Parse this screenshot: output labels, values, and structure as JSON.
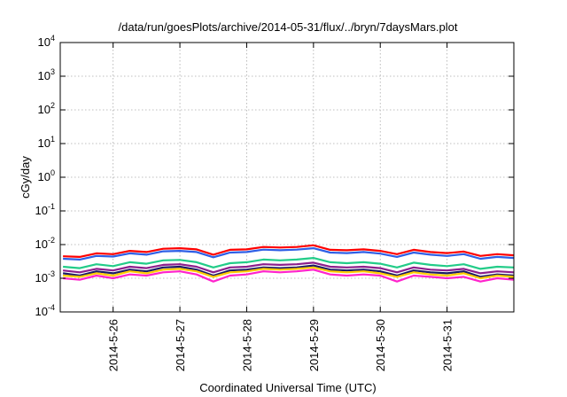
{
  "chart_data": {
    "type": "line",
    "title": "/data/run/goesPlots/archive/2014-05-31/flux/../bryn/7daysMars.plot",
    "xlabel": "Coordinated Universal Time (UTC)",
    "ylabel": "cGy/day",
    "y_scale": "log",
    "ylim": [
      0.0001,
      10000
    ],
    "y_ticks": [
      {
        "base": "10",
        "exp": "-4"
      },
      {
        "base": "10",
        "exp": "-3"
      },
      {
        "base": "10",
        "exp": "-2"
      },
      {
        "base": "10",
        "exp": "-1"
      },
      {
        "base": "10",
        "exp": "0"
      },
      {
        "base": "10",
        "exp": "1"
      },
      {
        "base": "10",
        "exp": "2"
      },
      {
        "base": "10",
        "exp": "3"
      },
      {
        "base": "10",
        "exp": "4"
      }
    ],
    "xlim": [
      "2014-05-25 05:00",
      "2014-06-01 00:00"
    ],
    "x_ticks": [
      "2014-5-26",
      "2014-5-27",
      "2014-5-28",
      "2014-5-29",
      "2014-5-30",
      "2014-5-31"
    ],
    "grid": true,
    "x": [
      "2014-05-25 06:00",
      "2014-05-25 12:00",
      "2014-05-25 18:00",
      "2014-05-26 00:00",
      "2014-05-26 06:00",
      "2014-05-26 12:00",
      "2014-05-26 18:00",
      "2014-05-27 00:00",
      "2014-05-27 06:00",
      "2014-05-27 12:00",
      "2014-05-27 18:00",
      "2014-05-28 00:00",
      "2014-05-28 06:00",
      "2014-05-28 12:00",
      "2014-05-28 18:00",
      "2014-05-29 00:00",
      "2014-05-29 06:00",
      "2014-05-29 12:00",
      "2014-05-29 18:00",
      "2014-05-30 00:00",
      "2014-05-30 06:00",
      "2014-05-30 12:00",
      "2014-05-30 18:00",
      "2014-05-31 00:00",
      "2014-05-31 06:00",
      "2014-05-31 12:00",
      "2014-05-31 18:00",
      "2014-06-01 00:00"
    ],
    "series": [
      {
        "color": "#ff0000",
        "values": [
          0.0045,
          0.0043,
          0.0055,
          0.0052,
          0.0065,
          0.006,
          0.0075,
          0.0078,
          0.0072,
          0.005,
          0.007,
          0.0072,
          0.0085,
          0.0082,
          0.0085,
          0.0095,
          0.007,
          0.0068,
          0.0072,
          0.0065,
          0.0052,
          0.007,
          0.006,
          0.0056,
          0.0062,
          0.0046,
          0.0052,
          0.0048
        ]
      },
      {
        "color": "#2e5fe6",
        "values": [
          0.0038,
          0.0036,
          0.0046,
          0.0044,
          0.0055,
          0.005,
          0.0063,
          0.0065,
          0.006,
          0.0042,
          0.0058,
          0.006,
          0.0071,
          0.0068,
          0.0071,
          0.0078,
          0.0058,
          0.0056,
          0.006,
          0.0054,
          0.0043,
          0.0058,
          0.005,
          0.0046,
          0.0052,
          0.0038,
          0.0043,
          0.004
        ]
      },
      {
        "color": "#22cc88",
        "values": [
          0.0022,
          0.002,
          0.0026,
          0.0023,
          0.003,
          0.0027,
          0.0034,
          0.0035,
          0.003,
          0.0021,
          0.0028,
          0.003,
          0.0036,
          0.0034,
          0.0036,
          0.004,
          0.003,
          0.0028,
          0.003,
          0.0027,
          0.0021,
          0.0029,
          0.0025,
          0.0023,
          0.0026,
          0.0019,
          0.0022,
          0.0021
        ]
      },
      {
        "color": "#8c1f8c",
        "values": [
          0.0017,
          0.0015,
          0.0019,
          0.0017,
          0.0022,
          0.002,
          0.0025,
          0.0026,
          0.0022,
          0.0015,
          0.0021,
          0.0022,
          0.0026,
          0.0025,
          0.0026,
          0.0029,
          0.0022,
          0.0021,
          0.0022,
          0.002,
          0.0015,
          0.0021,
          0.0018,
          0.0017,
          0.0019,
          0.0014,
          0.0016,
          0.0015
        ]
      },
      {
        "color": "#1a1a66",
        "values": [
          0.0014,
          0.0012,
          0.0016,
          0.0014,
          0.0018,
          0.0016,
          0.0021,
          0.0022,
          0.0018,
          0.0012,
          0.0017,
          0.0018,
          0.0021,
          0.002,
          0.0021,
          0.0024,
          0.0018,
          0.0017,
          0.0018,
          0.0016,
          0.0012,
          0.0017,
          0.0015,
          0.0014,
          0.0016,
          0.0011,
          0.0013,
          0.0012
        ]
      },
      {
        "color": "#ffcc00",
        "values": [
          0.0012,
          0.0011,
          0.0014,
          0.0012,
          0.0016,
          0.0014,
          0.0018,
          0.0019,
          0.0016,
          0.0011,
          0.0015,
          0.0016,
          0.0019,
          0.0018,
          0.0019,
          0.0021,
          0.0016,
          0.0015,
          0.0016,
          0.0014,
          0.0011,
          0.0015,
          0.0013,
          0.0012,
          0.0014,
          0.001,
          0.0012,
          0.0011
        ]
      },
      {
        "color": "#ff22cc",
        "values": [
          0.001,
          0.0009,
          0.0012,
          0.001,
          0.0013,
          0.0012,
          0.0015,
          0.0016,
          0.0013,
          0.0008,
          0.0012,
          0.0013,
          0.0016,
          0.0015,
          0.0016,
          0.0018,
          0.0013,
          0.0012,
          0.0013,
          0.0012,
          0.0008,
          0.0012,
          0.0011,
          0.001,
          0.0011,
          0.0008,
          0.001,
          0.0009
        ]
      }
    ]
  }
}
